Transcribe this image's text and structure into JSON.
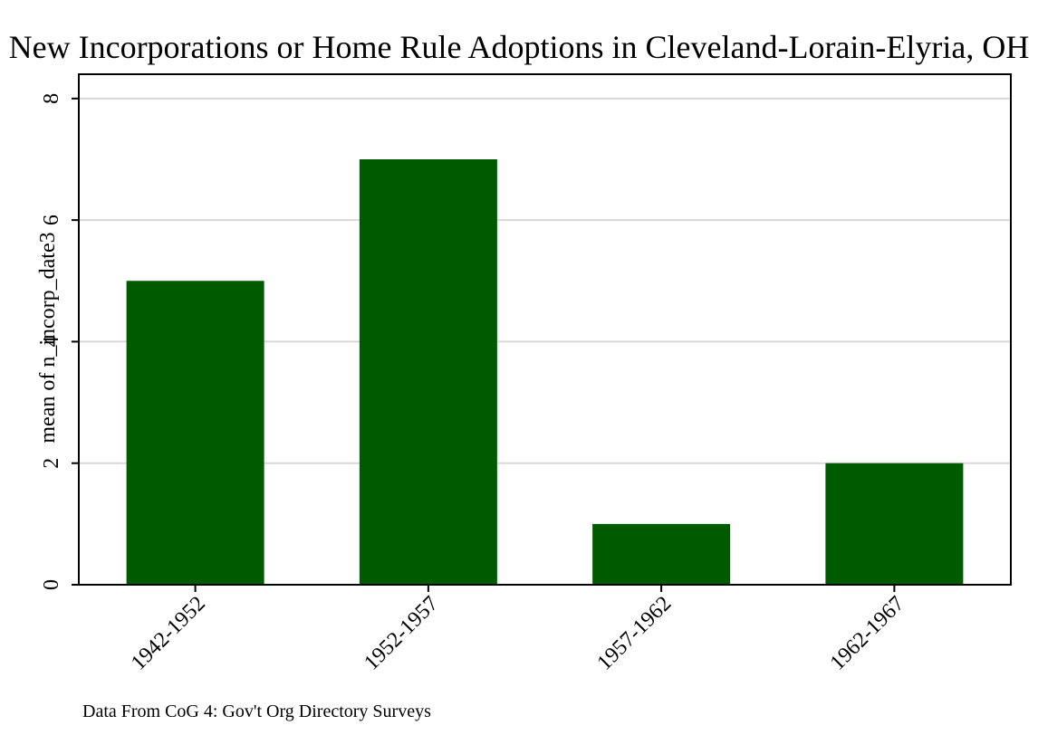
{
  "chart_data": {
    "type": "bar",
    "title": "New Incorporations or Home Rule Adoptions in Cleveland-Lorain-Elyria, OH",
    "ylabel": "mean of n_incorp_date3",
    "xlabel": "",
    "categories": [
      "1942-1952",
      "1952-1957",
      "1957-1962",
      "1962-1967"
    ],
    "values": [
      5,
      7,
      1,
      2
    ],
    "ylim": [
      0,
      8.4
    ],
    "yticks": [
      0,
      2,
      4,
      6,
      8
    ],
    "grid": true,
    "legend": "none",
    "note": "Data From CoG 4: Gov't Org Directory Surveys",
    "colors": {
      "bar": "#005a00",
      "grid": "#d9d9d9",
      "axis": "#000000"
    }
  }
}
